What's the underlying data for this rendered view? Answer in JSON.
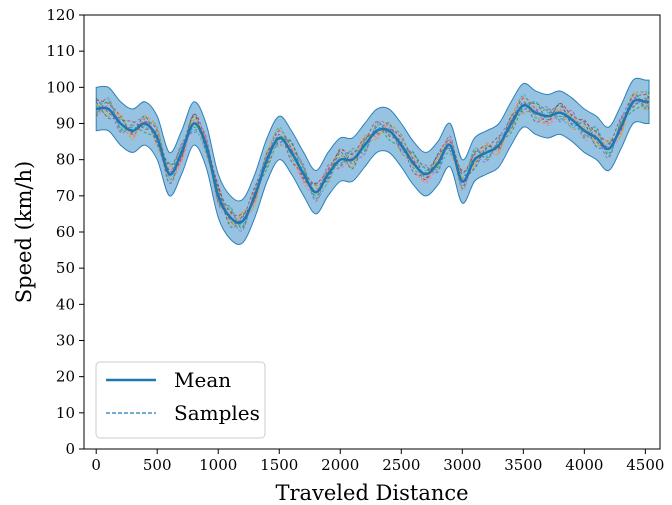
{
  "chart_data": {
    "type": "line",
    "xlabel": "Traveled Distance",
    "ylabel": "Speed (km/h)",
    "xlim": [
      -100,
      4620
    ],
    "ylim": [
      0,
      120
    ],
    "xticks": [
      0,
      500,
      1000,
      1500,
      2000,
      2500,
      3000,
      3500,
      4000,
      4500
    ],
    "yticks": [
      0,
      10,
      20,
      30,
      40,
      50,
      60,
      70,
      80,
      90,
      100,
      110,
      120
    ],
    "grid": false,
    "legend_position": "bottom-left",
    "legend": [
      {
        "label": "Mean",
        "style": "solid",
        "color": "#1f77b4"
      },
      {
        "label": "Samples",
        "style": "dashed",
        "color": "#1f77b4"
      }
    ],
    "band_color": "#5fa3d3",
    "band_halfwidth": 6,
    "mean": {
      "name": "Mean",
      "x": [
        0,
        100,
        200,
        300,
        400,
        500,
        600,
        700,
        800,
        900,
        1000,
        1100,
        1200,
        1300,
        1400,
        1500,
        1600,
        1700,
        1800,
        1900,
        2000,
        2100,
        2200,
        2300,
        2400,
        2500,
        2600,
        2700,
        2800,
        2900,
        3000,
        3100,
        3200,
        3300,
        3400,
        3500,
        3600,
        3700,
        3800,
        3900,
        4000,
        4100,
        4200,
        4300,
        4400,
        4500,
        4530
      ],
      "y": [
        94,
        94,
        90,
        88,
        90,
        86,
        76,
        82,
        90,
        84,
        70,
        64,
        63,
        70,
        80,
        86,
        82,
        76,
        71,
        76,
        80,
        80,
        84,
        88,
        88,
        84,
        79,
        76,
        79,
        84,
        74,
        80,
        82,
        84,
        90,
        95,
        93,
        92,
        93,
        91,
        88,
        86,
        83,
        89,
        96,
        96,
        96
      ]
    },
    "samples": [
      {
        "offsets": [
          2.5,
          1.5,
          2.0,
          -1.0,
          0.5,
          2.0,
          1.0,
          -1.5,
          2.5,
          1.0
        ],
        "color": "#d62728"
      },
      {
        "offsets": [
          -2.0,
          2.0,
          -1.5,
          1.0,
          -2.5,
          -0.5,
          2.5,
          1.5,
          -1.0,
          0.5
        ],
        "color": "#2ca02c"
      },
      {
        "offsets": [
          1.0,
          -2.0,
          2.5,
          -1.5,
          1.5,
          2.5,
          -1.0,
          -2.0,
          1.0,
          -2.5
        ],
        "color": "#ff7f0e"
      },
      {
        "offsets": [
          -1.0,
          0.5,
          -2.5,
          2.0,
          1.0,
          -2.0,
          0.5,
          2.5,
          -2.5,
          1.5
        ],
        "color": "#9467bd"
      },
      {
        "offsets": [
          3.0,
          -1.0,
          1.0,
          2.5,
          -1.5,
          1.0,
          -2.5,
          0.5,
          2.0,
          -1.0
        ],
        "color": "#8c564b"
      },
      {
        "offsets": [
          -2.5,
          1.0,
          0.5,
          -2.0,
          2.0,
          -1.0,
          1.5,
          -2.5,
          0.5,
          2.0
        ],
        "color": "#e377c2"
      },
      {
        "offsets": [
          0.5,
          2.5,
          -1.0,
          0.5,
          -0.5,
          3.0,
          -1.5,
          1.0,
          -1.5,
          -2.0
        ],
        "color": "#17becf"
      },
      {
        "offsets": [
          1.5,
          -1.5,
          2.0,
          -2.5,
          2.5,
          -2.5,
          2.0,
          -0.5,
          1.5,
          0.5
        ],
        "color": "#bcbd22"
      },
      {
        "offsets": [
          -1.5,
          3.0,
          -2.0,
          1.5,
          -1.0,
          0.5,
          -0.5,
          2.0,
          -2.0,
          2.5
        ],
        "color": "#7f7f7f"
      },
      {
        "offsets": [
          2.0,
          -2.5,
          1.5,
          -0.5,
          2.0,
          -1.5,
          3.0,
          -1.0,
          2.5,
          -1.5
        ],
        "color": "#1f77b4"
      }
    ]
  }
}
